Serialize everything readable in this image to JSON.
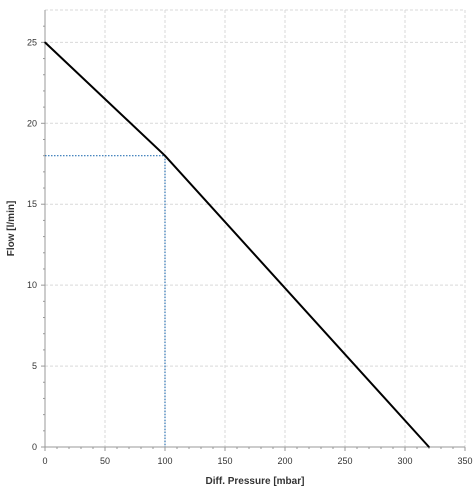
{
  "chart_data": {
    "type": "line",
    "title": "",
    "xlabel": "Diff. Pressure [mbar]",
    "ylabel": "Flow [l/min]",
    "xlim": [
      0,
      350
    ],
    "ylim": [
      0,
      27
    ],
    "x_ticks": [
      "0",
      "50",
      "100",
      "150",
      "200",
      "250",
      "300",
      "350"
    ],
    "y_ticks": [
      "0",
      "5",
      "10",
      "15",
      "20",
      "25"
    ],
    "grid": true,
    "series": [
      {
        "x": [
          0,
          100,
          320
        ],
        "y": [
          25,
          18,
          0
        ]
      }
    ],
    "annotations": [
      {
        "type": "guide",
        "x": 100,
        "y": 18
      }
    ],
    "colors": {
      "line": "#000000",
      "guide": "#2e75b6",
      "grid": "#d9d9d9",
      "axis": "#999999"
    }
  }
}
